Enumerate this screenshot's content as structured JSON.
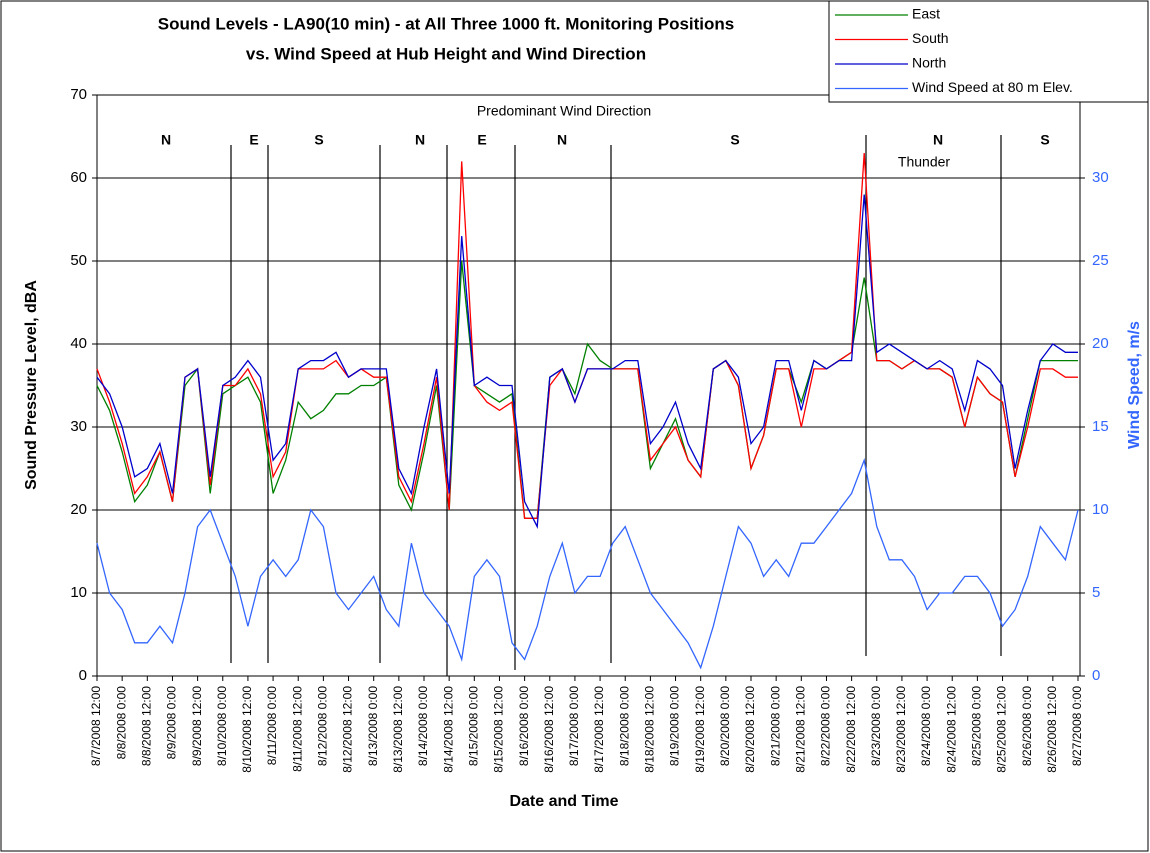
{
  "chart_data": {
    "type": "line",
    "title": [
      "Sound Levels - LA90(10 min) - at All Three 1000 ft. Monitoring Positions",
      "vs. Wind Speed at Hub Height and Wind Direction"
    ],
    "xlabel": "Date and Time",
    "ylabel": "Sound Pressure Level, dBA",
    "y2label": "Wind Speed, m/s",
    "categories": [
      "8/7/2008 12:00",
      null,
      "8/8/2008 0:00",
      null,
      "8/8/2008 12:00",
      null,
      "8/9/2008 0:00",
      null,
      "8/9/2008 12:00",
      null,
      "8/10/2008 0:00",
      null,
      "8/10/2008 12:00",
      null,
      "8/11/2008 0:00",
      null,
      "8/11/2008 12:00",
      null,
      "8/12/2008 0:00",
      null,
      "8/12/2008 12:00",
      null,
      "8/13/2008 0:00",
      null,
      "8/13/2008 12:00",
      null,
      "8/14/2008 0:00",
      null,
      "8/14/2008 12:00",
      null,
      "8/15/2008 0:00",
      null,
      "8/15/2008 12:00",
      null,
      "8/16/2008 0:00",
      null,
      "8/16/2008 12:00",
      null,
      "8/17/2008 0:00",
      null,
      "8/17/2008 12:00",
      null,
      "8/18/2008 0:00",
      null,
      "8/18/2008 12:00",
      null,
      "8/19/2008 0:00",
      null,
      "8/19/2008 12:00",
      null,
      "8/20/2008 0:00",
      null,
      "8/20/2008 12:00",
      null,
      "8/21/2008 0:00",
      null,
      "8/21/2008 12:00",
      null,
      "8/22/2008 0:00",
      null,
      "8/22/2008 12:00",
      null,
      "8/23/2008 0:00",
      null,
      "8/23/2008 12:00",
      null,
      "8/24/2008 0:00",
      null,
      "8/24/2008 12:00",
      null,
      "8/25/2008 0:00",
      null,
      "8/25/2008 12:00",
      null,
      "8/26/2008 0:00",
      null,
      "8/26/2008 12:00",
      null,
      "8/27/2008 0:00"
    ],
    "series": [
      {
        "name": "East",
        "color": "#008000",
        "values": [
          35,
          32,
          27,
          21,
          23,
          27,
          21,
          35,
          37,
          22,
          34,
          35,
          36,
          33,
          22,
          26,
          33,
          31,
          32,
          34,
          34,
          35,
          35,
          36,
          23,
          20,
          27,
          35,
          20,
          50,
          35,
          34,
          33,
          34,
          19,
          19,
          36,
          37,
          34,
          40,
          38,
          37,
          37,
          37,
          25,
          28,
          31,
          26,
          24,
          37,
          38,
          35,
          25,
          29,
          37,
          37,
          33,
          38,
          37,
          38,
          39,
          48,
          38,
          38,
          37,
          38,
          37,
          37,
          36,
          30,
          36,
          34,
          33,
          24,
          31,
          38,
          38,
          38,
          38
        ]
      },
      {
        "name": "South",
        "color": "#ff0000",
        "values": [
          37,
          33,
          28,
          22,
          24,
          27,
          21,
          36,
          37,
          23,
          35,
          35,
          37,
          34,
          24,
          27,
          37,
          37,
          37,
          38,
          36,
          37,
          36,
          36,
          24,
          21,
          28,
          36,
          20,
          62,
          35,
          33,
          32,
          33,
          19,
          19,
          35,
          37,
          33,
          37,
          37,
          37,
          37,
          37,
          26,
          28,
          30,
          26,
          24,
          37,
          38,
          35,
          25,
          29,
          37,
          37,
          30,
          37,
          37,
          38,
          39,
          63,
          38,
          38,
          37,
          38,
          37,
          37,
          36,
          30,
          36,
          34,
          33,
          24,
          30,
          37,
          37,
          36,
          36
        ]
      },
      {
        "name": "North",
        "color": "#0000cc",
        "values": [
          36,
          34,
          30,
          24,
          25,
          28,
          22,
          36,
          37,
          24,
          35,
          36,
          38,
          36,
          26,
          28,
          37,
          38,
          38,
          39,
          36,
          37,
          37,
          37,
          25,
          22,
          30,
          37,
          22,
          53,
          35,
          36,
          35,
          35,
          21,
          18,
          36,
          37,
          33,
          37,
          37,
          37,
          38,
          38,
          28,
          30,
          33,
          28,
          25,
          37,
          38,
          36,
          28,
          30,
          38,
          38,
          32,
          38,
          37,
          38,
          38,
          58,
          39,
          40,
          39,
          38,
          37,
          38,
          37,
          32,
          38,
          37,
          35,
          25,
          32,
          38,
          40,
          39,
          39
        ]
      },
      {
        "name": "Wind Speed at 80 m Elev.",
        "color": "#3366ff",
        "axis": "y2",
        "values": [
          8,
          5,
          4,
          2,
          2,
          3,
          2,
          5,
          9,
          10,
          8,
          6,
          3,
          6,
          7,
          6,
          7,
          10,
          9,
          5,
          4,
          5,
          6,
          4,
          3,
          8,
          5,
          4,
          3,
          1,
          6,
          7,
          6,
          2,
          1,
          3,
          6,
          8,
          5,
          6,
          6,
          8,
          9,
          7,
          5,
          4,
          3,
          2,
          0.5,
          3,
          6,
          9,
          8,
          6,
          7,
          6,
          8,
          8,
          9,
          10,
          11,
          13,
          9,
          7,
          7,
          6,
          4,
          5,
          5,
          6,
          6,
          5,
          3,
          4,
          6,
          9,
          8,
          7,
          10
        ]
      }
    ],
    "ylim": [
      0,
      70
    ],
    "yticks": [
      0,
      10,
      20,
      30,
      40,
      50,
      60,
      70
    ],
    "y2lim": [
      0,
      35
    ],
    "y2ticks": [
      0,
      5,
      10,
      15,
      20,
      25,
      30
    ],
    "grid": true,
    "legend": "top-right",
    "annotations": {
      "wind_direction_title": "Predominant Wind Direction",
      "wind_direction": [
        "N",
        "E",
        "S",
        "N",
        "E",
        "N",
        "S",
        "N",
        "S"
      ],
      "thunder": "Thunder"
    }
  }
}
